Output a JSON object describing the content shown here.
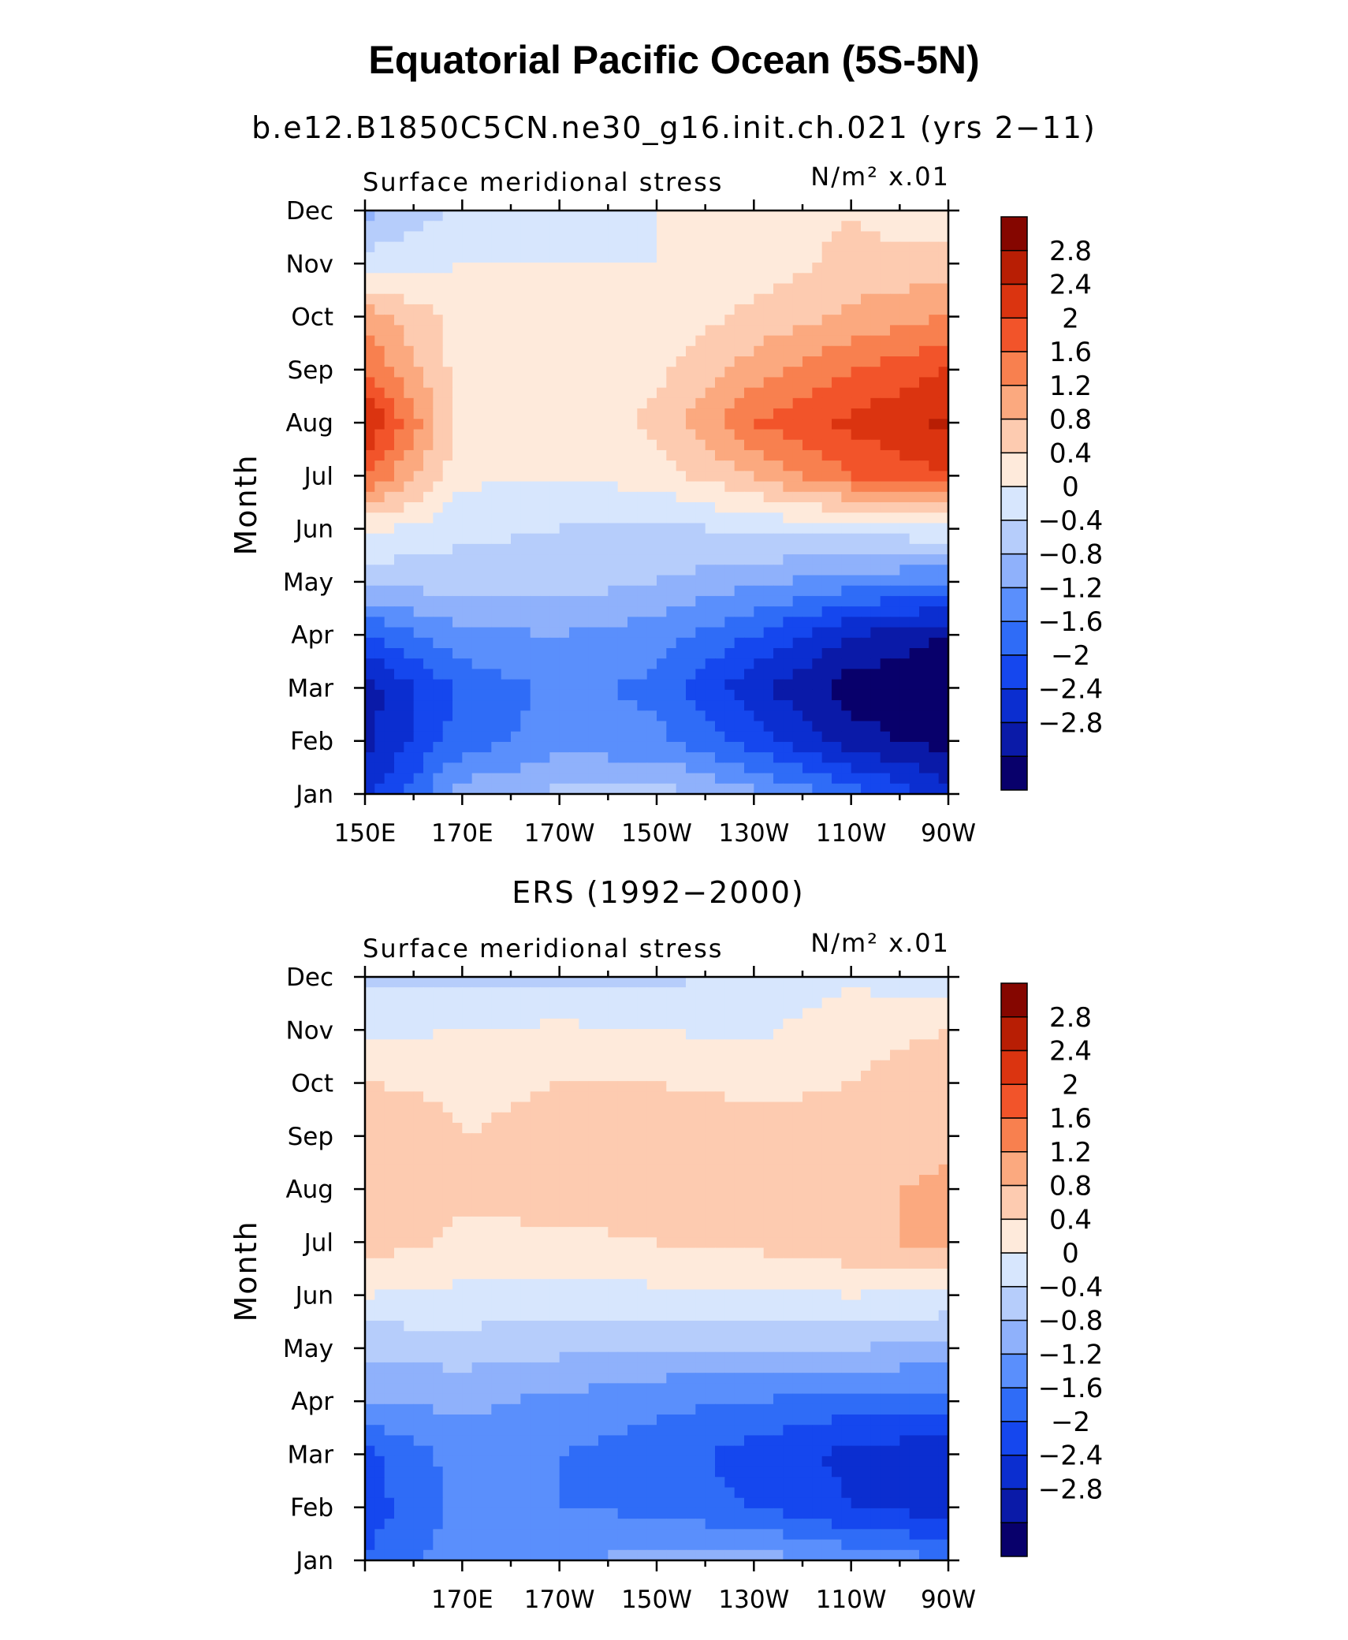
{
  "figure": {
    "title": "Equatorial Pacific Ocean (5S-5N)",
    "colors": [
      "#08006b",
      "#0a1aa8",
      "#0b2ed0",
      "#1547ee",
      "#2f6cf7",
      "#5a8ffc",
      "#8fb1fb",
      "#b6cdfb",
      "#d7e6fd",
      "#feeadb",
      "#fdcbb0",
      "#fba97f",
      "#f8804f",
      "#f2542a",
      "#db3410",
      "#b81e04",
      "#850600"
    ],
    "colorbar_labels": [
      "2.8",
      "2.4",
      "2",
      "1.6",
      "1.2",
      "0.8",
      "0.4",
      "0",
      "−0.4",
      "−0.8",
      "−1.2",
      "−1.6",
      "−2",
      "−2.4",
      "−2.8"
    ]
  },
  "chart_data": [
    {
      "type": "heatmap",
      "title": "b.e12.B1850C5CN.ne30_g16.init.ch.021 (yrs 2−11)",
      "subtitle": "Surface meridional stress",
      "units": "N/m² x.01",
      "ylabel": "Month",
      "xlabel": "",
      "x_tick_labels": [
        "150E",
        "170E",
        "170W",
        "150W",
        "130W",
        "110W",
        "90W"
      ],
      "y_tick_labels": [
        "Jan",
        "Feb",
        "Mar",
        "Apr",
        "May",
        "Jun",
        "Jul",
        "Aug",
        "Sep",
        "Oct",
        "Nov",
        "Dec"
      ],
      "xlim": [
        150,
        270
      ],
      "levels": [
        -2.8,
        -2.4,
        -2.0,
        -1.6,
        -1.2,
        -0.8,
        -0.4,
        0,
        0.4,
        0.8,
        1.2,
        1.6,
        2.0,
        2.4,
        2.8
      ],
      "x": [
        150,
        170,
        190,
        210,
        230,
        250,
        270
      ],
      "y": [
        "Jan",
        "Feb",
        "Mar",
        "Apr",
        "May",
        "Jun",
        "Jul",
        "Aug",
        "Sep",
        "Oct",
        "Nov",
        "Dec"
      ],
      "z": [
        [
          -2.2,
          -0.6,
          -0.3,
          -0.2,
          -0.7,
          -1.4,
          -2.2
        ],
        [
          -2.5,
          -1.4,
          -1.0,
          -1.1,
          -1.8,
          -2.6,
          -3.0
        ],
        [
          -2.6,
          -1.5,
          -1.1,
          -1.3,
          -2.3,
          -3.0,
          -3.2
        ],
        [
          -1.6,
          -0.9,
          -0.8,
          -1.0,
          -1.6,
          -2.4,
          -2.8
        ],
        [
          -0.3,
          -0.2,
          -0.2,
          -0.4,
          -0.7,
          -1.0,
          -1.2
        ],
        [
          0.5,
          0.1,
          0.0,
          -0.1,
          0.1,
          0.2,
          0.3
        ],
        [
          2.0,
          0.5,
          0.4,
          0.6,
          1.2,
          2.0,
          2.4
        ],
        [
          2.9,
          0.6,
          0.5,
          0.9,
          2.0,
          2.5,
          2.9
        ],
        [
          2.0,
          0.6,
          0.5,
          0.7,
          1.4,
          2.0,
          2.4
        ],
        [
          1.4,
          0.6,
          0.5,
          0.5,
          0.9,
          1.3,
          1.6
        ],
        [
          0.2,
          0.4,
          0.4,
          0.4,
          0.6,
          0.9,
          1.0
        ],
        [
          -0.5,
          0.1,
          0.3,
          0.4,
          0.6,
          0.8,
          0.4
        ]
      ]
    },
    {
      "type": "heatmap",
      "title": "ERS (1992−2000)",
      "subtitle": "Surface meridional stress",
      "units": "N/m² x.01",
      "ylabel": "Month",
      "xlabel": "",
      "x_tick_labels": [
        "170E",
        "170W",
        "150W",
        "130W",
        "110W",
        "90W"
      ],
      "y_tick_labels": [
        "Jan",
        "Feb",
        "Mar",
        "Apr",
        "May",
        "Jun",
        "Jul",
        "Aug",
        "Sep",
        "Oct",
        "Nov",
        "Dec"
      ],
      "xlim": [
        150,
        270
      ],
      "levels": [
        -2.8,
        -2.4,
        -2.0,
        -1.6,
        -1.2,
        -0.8,
        -0.4,
        0,
        0.4,
        0.8,
        1.2,
        1.6,
        2.0,
        2.4,
        2.8
      ],
      "x": [
        150,
        170,
        190,
        210,
        230,
        250,
        270
      ],
      "y": [
        "Jan",
        "Feb",
        "Mar",
        "Apr",
        "May",
        "Jun",
        "Jul",
        "Aug",
        "Sep",
        "Oct",
        "Nov",
        "Dec"
      ],
      "z": [
        [
          -1.6,
          -0.9,
          -0.8,
          -0.7,
          -0.6,
          -0.9,
          -1.2
        ],
        [
          -1.8,
          -1.1,
          -1.2,
          -1.3,
          -1.6,
          -2.0,
          -2.2
        ],
        [
          -1.7,
          -1.0,
          -1.2,
          -1.4,
          -1.8,
          -2.1,
          -2.3
        ],
        [
          -0.8,
          -0.7,
          -0.9,
          -1.1,
          -1.2,
          -1.4,
          -1.4
        ],
        [
          -0.3,
          -0.2,
          -0.3,
          -0.4,
          -0.4,
          -0.4,
          -0.5
        ],
        [
          0.4,
          0.3,
          0.3,
          0.3,
          0.3,
          0.4,
          0.3
        ],
        [
          1.0,
          0.7,
          0.7,
          0.8,
          0.9,
          1.1,
          1.3
        ],
        [
          1.0,
          0.9,
          1.0,
          1.0,
          1.0,
          1.1,
          1.3
        ],
        [
          1.2,
          0.8,
          0.9,
          1.0,
          1.0,
          0.9,
          1.1
        ],
        [
          0.8,
          0.7,
          0.8,
          0.8,
          0.7,
          0.8,
          1.0
        ],
        [
          0.3,
          0.4,
          0.5,
          0.4,
          0.3,
          0.7,
          0.8
        ],
        [
          -0.1,
          -0.1,
          -0.2,
          -0.1,
          0.1,
          0.3,
          0.1
        ]
      ]
    }
  ]
}
